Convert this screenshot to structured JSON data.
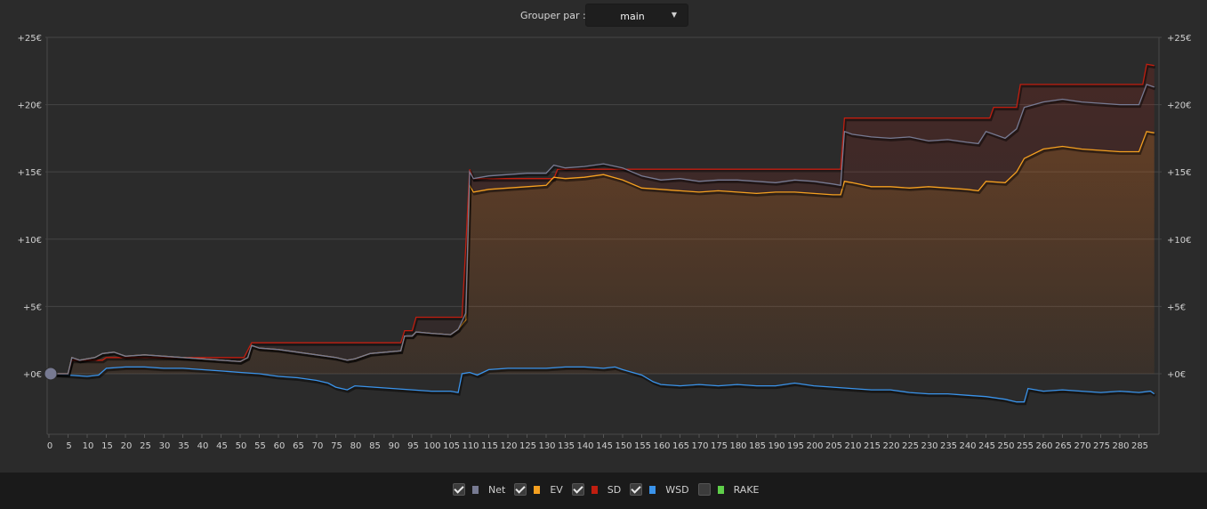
{
  "toolbar": {
    "group_label": "Grouper par :",
    "group_value": "main"
  },
  "legend": [
    {
      "label": "Net",
      "color": "#777a92",
      "checked": true
    },
    {
      "label": "EV",
      "color": "#f5a020",
      "checked": true
    },
    {
      "label": "SD",
      "color": "#c01e10",
      "checked": true
    },
    {
      "label": "WSD",
      "color": "#3a93ea",
      "checked": true
    },
    {
      "label": "RAKE",
      "color": "#5fcf4a",
      "checked": false
    }
  ],
  "chart_data": {
    "type": "line",
    "xlim": [
      0,
      290
    ],
    "ylim": [
      -4.5,
      25
    ],
    "y_ticks": [
      0,
      5,
      10,
      15,
      20,
      25
    ],
    "y_tick_labels": [
      "+0€",
      "+5€",
      "+10€",
      "+15€",
      "+20€",
      "+25€"
    ],
    "x_ticks": [
      0,
      5,
      10,
      15,
      20,
      25,
      30,
      35,
      40,
      45,
      50,
      55,
      60,
      65,
      70,
      75,
      80,
      85,
      90,
      95,
      100,
      105,
      110,
      115,
      120,
      125,
      130,
      135,
      140,
      145,
      150,
      155,
      160,
      165,
      170,
      175,
      180,
      185,
      190,
      195,
      200,
      205,
      210,
      215,
      220,
      225,
      230,
      235,
      240,
      245,
      250,
      255,
      260,
      265,
      270,
      275,
      280,
      285
    ],
    "grid": true,
    "series": [
      {
        "name": "SD",
        "color": "#c01e10",
        "points": [
          [
            0,
            0
          ],
          [
            5,
            0
          ],
          [
            6,
            1
          ],
          [
            14,
            1
          ],
          [
            15,
            1.2
          ],
          [
            51,
            1.2
          ],
          [
            53,
            2.3
          ],
          [
            92,
            2.3
          ],
          [
            93,
            3.2
          ],
          [
            95,
            3.2
          ],
          [
            96,
            4.2
          ],
          [
            108,
            4.2
          ],
          [
            109,
            9.5
          ],
          [
            110,
            15.2
          ],
          [
            111,
            14.5
          ],
          [
            132,
            14.5
          ],
          [
            133,
            15.2
          ],
          [
            207,
            15.2
          ],
          [
            208,
            19
          ],
          [
            246,
            19
          ],
          [
            247,
            19.8
          ],
          [
            253,
            19.8
          ],
          [
            254,
            21.5
          ],
          [
            286,
            21.5
          ],
          [
            287,
            23
          ],
          [
            289,
            22.9
          ]
        ]
      },
      {
        "name": "Net",
        "color": "#777a92",
        "points": [
          [
            0,
            0
          ],
          [
            5,
            0
          ],
          [
            6,
            1.2
          ],
          [
            8,
            1
          ],
          [
            12,
            1.2
          ],
          [
            14,
            1.5
          ],
          [
            17,
            1.6
          ],
          [
            20,
            1.3
          ],
          [
            25,
            1.4
          ],
          [
            30,
            1.3
          ],
          [
            35,
            1.2
          ],
          [
            40,
            1.1
          ],
          [
            45,
            1
          ],
          [
            50,
            0.9
          ],
          [
            52,
            1.2
          ],
          [
            53,
            2.1
          ],
          [
            55,
            1.9
          ],
          [
            60,
            1.8
          ],
          [
            65,
            1.6
          ],
          [
            70,
            1.4
          ],
          [
            75,
            1.2
          ],
          [
            78,
            1
          ],
          [
            80,
            1.1
          ],
          [
            84,
            1.5
          ],
          [
            88,
            1.6
          ],
          [
            92,
            1.7
          ],
          [
            93,
            2.8
          ],
          [
            95,
            2.8
          ],
          [
            96,
            3.1
          ],
          [
            100,
            3
          ],
          [
            105,
            2.9
          ],
          [
            107,
            3.3
          ],
          [
            109,
            4.5
          ],
          [
            110,
            15
          ],
          [
            111,
            14.5
          ],
          [
            115,
            14.7
          ],
          [
            120,
            14.8
          ],
          [
            125,
            14.9
          ],
          [
            130,
            14.9
          ],
          [
            132,
            15.5
          ],
          [
            135,
            15.3
          ],
          [
            140,
            15.4
          ],
          [
            145,
            15.6
          ],
          [
            150,
            15.3
          ],
          [
            155,
            14.7
          ],
          [
            160,
            14.4
          ],
          [
            165,
            14.5
          ],
          [
            170,
            14.3
          ],
          [
            175,
            14.4
          ],
          [
            180,
            14.4
          ],
          [
            185,
            14.3
          ],
          [
            190,
            14.2
          ],
          [
            195,
            14.4
          ],
          [
            200,
            14.3
          ],
          [
            205,
            14.1
          ],
          [
            207,
            14
          ],
          [
            208,
            18
          ],
          [
            210,
            17.8
          ],
          [
            215,
            17.6
          ],
          [
            220,
            17.5
          ],
          [
            225,
            17.6
          ],
          [
            230,
            17.3
          ],
          [
            235,
            17.4
          ],
          [
            240,
            17.2
          ],
          [
            243,
            17.1
          ],
          [
            245,
            18
          ],
          [
            250,
            17.5
          ],
          [
            253,
            18.2
          ],
          [
            255,
            19.8
          ],
          [
            260,
            20.2
          ],
          [
            265,
            20.4
          ],
          [
            270,
            20.2
          ],
          [
            275,
            20.1
          ],
          [
            280,
            20
          ],
          [
            285,
            20
          ],
          [
            287,
            21.5
          ],
          [
            289,
            21.3
          ]
        ]
      },
      {
        "name": "EV",
        "color": "#f5a020",
        "points": [
          [
            0,
            0
          ],
          [
            5,
            0
          ],
          [
            6,
            1.2
          ],
          [
            8,
            1
          ],
          [
            12,
            1.2
          ],
          [
            14,
            1.5
          ],
          [
            17,
            1.6
          ],
          [
            20,
            1.3
          ],
          [
            25,
            1.4
          ],
          [
            30,
            1.3
          ],
          [
            35,
            1.2
          ],
          [
            40,
            1.1
          ],
          [
            45,
            1
          ],
          [
            50,
            0.9
          ],
          [
            52,
            1.2
          ],
          [
            53,
            2.1
          ],
          [
            55,
            1.9
          ],
          [
            60,
            1.8
          ],
          [
            65,
            1.6
          ],
          [
            70,
            1.4
          ],
          [
            75,
            1.2
          ],
          [
            78,
            1
          ],
          [
            80,
            1.1
          ],
          [
            84,
            1.5
          ],
          [
            88,
            1.6
          ],
          [
            92,
            1.7
          ],
          [
            93,
            2.8
          ],
          [
            95,
            2.8
          ],
          [
            96,
            3.1
          ],
          [
            100,
            3
          ],
          [
            105,
            2.9
          ],
          [
            107,
            3.3
          ],
          [
            109,
            4
          ],
          [
            110,
            14
          ],
          [
            111,
            13.5
          ],
          [
            115,
            13.7
          ],
          [
            120,
            13.8
          ],
          [
            125,
            13.9
          ],
          [
            130,
            14
          ],
          [
            132,
            14.6
          ],
          [
            135,
            14.5
          ],
          [
            140,
            14.6
          ],
          [
            145,
            14.8
          ],
          [
            150,
            14.4
          ],
          [
            155,
            13.8
          ],
          [
            160,
            13.7
          ],
          [
            165,
            13.6
          ],
          [
            170,
            13.5
          ],
          [
            175,
            13.6
          ],
          [
            180,
            13.5
          ],
          [
            185,
            13.4
          ],
          [
            190,
            13.5
          ],
          [
            195,
            13.5
          ],
          [
            200,
            13.4
          ],
          [
            205,
            13.3
          ],
          [
            207,
            13.3
          ],
          [
            208,
            14.3
          ],
          [
            210,
            14.2
          ],
          [
            215,
            13.9
          ],
          [
            220,
            13.9
          ],
          [
            225,
            13.8
          ],
          [
            230,
            13.9
          ],
          [
            235,
            13.8
          ],
          [
            240,
            13.7
          ],
          [
            243,
            13.6
          ],
          [
            245,
            14.3
          ],
          [
            250,
            14.2
          ],
          [
            253,
            15
          ],
          [
            255,
            16
          ],
          [
            260,
            16.7
          ],
          [
            265,
            16.9
          ],
          [
            270,
            16.7
          ],
          [
            275,
            16.6
          ],
          [
            280,
            16.5
          ],
          [
            285,
            16.5
          ],
          [
            287,
            18
          ],
          [
            289,
            17.9
          ]
        ]
      },
      {
        "name": "WSD",
        "color": "#3a93ea",
        "points": [
          [
            0,
            0
          ],
          [
            10,
            -0.2
          ],
          [
            13,
            -0.1
          ],
          [
            15,
            0.4
          ],
          [
            20,
            0.5
          ],
          [
            25,
            0.5
          ],
          [
            30,
            0.4
          ],
          [
            35,
            0.4
          ],
          [
            40,
            0.3
          ],
          [
            45,
            0.2
          ],
          [
            50,
            0.1
          ],
          [
            55,
            0
          ],
          [
            60,
            -0.2
          ],
          [
            65,
            -0.3
          ],
          [
            70,
            -0.5
          ],
          [
            73,
            -0.7
          ],
          [
            75,
            -1
          ],
          [
            78,
            -1.2
          ],
          [
            80,
            -0.9
          ],
          [
            85,
            -1
          ],
          [
            90,
            -1.1
          ],
          [
            95,
            -1.2
          ],
          [
            100,
            -1.3
          ],
          [
            105,
            -1.3
          ],
          [
            107,
            -1.4
          ],
          [
            108,
            0
          ],
          [
            110,
            0.1
          ],
          [
            112,
            -0.1
          ],
          [
            115,
            0.3
          ],
          [
            120,
            0.4
          ],
          [
            125,
            0.4
          ],
          [
            130,
            0.4
          ],
          [
            135,
            0.5
          ],
          [
            140,
            0.5
          ],
          [
            145,
            0.4
          ],
          [
            148,
            0.5
          ],
          [
            150,
            0.3
          ],
          [
            155,
            -0.1
          ],
          [
            158,
            -0.6
          ],
          [
            160,
            -0.8
          ],
          [
            165,
            -0.9
          ],
          [
            170,
            -0.8
          ],
          [
            175,
            -0.9
          ],
          [
            180,
            -0.8
          ],
          [
            185,
            -0.9
          ],
          [
            190,
            -0.9
          ],
          [
            195,
            -0.7
          ],
          [
            200,
            -0.9
          ],
          [
            205,
            -1
          ],
          [
            210,
            -1.1
          ],
          [
            215,
            -1.2
          ],
          [
            220,
            -1.2
          ],
          [
            225,
            -1.4
          ],
          [
            230,
            -1.5
          ],
          [
            235,
            -1.5
          ],
          [
            240,
            -1.6
          ],
          [
            245,
            -1.7
          ],
          [
            250,
            -1.9
          ],
          [
            253,
            -2.1
          ],
          [
            255,
            -2.1
          ],
          [
            256,
            -1.1
          ],
          [
            260,
            -1.3
          ],
          [
            265,
            -1.2
          ],
          [
            270,
            -1.3
          ],
          [
            275,
            -1.4
          ],
          [
            280,
            -1.3
          ],
          [
            285,
            -1.4
          ],
          [
            288,
            -1.3
          ],
          [
            289,
            -1.5
          ]
        ]
      }
    ]
  }
}
